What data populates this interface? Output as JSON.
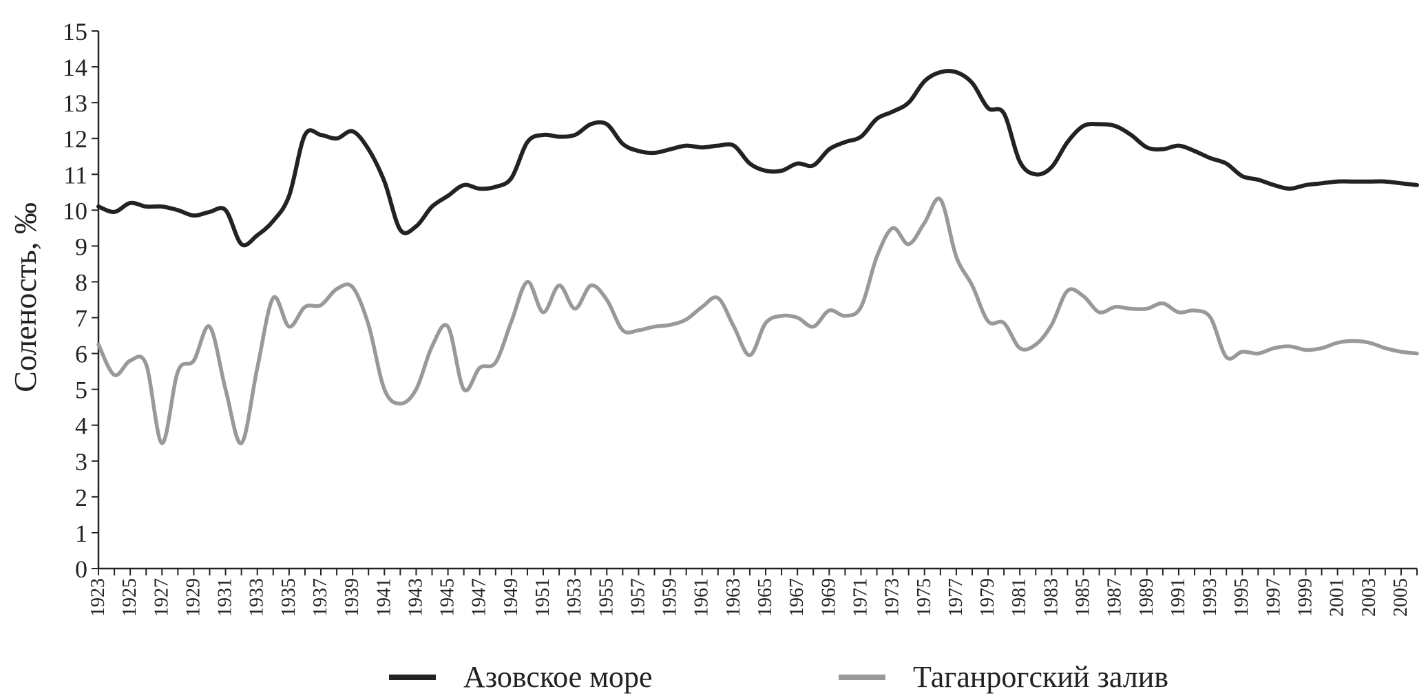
{
  "chart_data": {
    "type": "line",
    "ylabel": "Соленость, ‰",
    "xlabel": "",
    "ylim": [
      0,
      15
    ],
    "yticks": [
      0,
      1,
      2,
      3,
      4,
      5,
      6,
      7,
      8,
      9,
      10,
      11,
      12,
      13,
      14,
      15
    ],
    "xlim": [
      1923,
      2006
    ],
    "xtick_labels": [
      "1923",
      "1925",
      "1927",
      "1929",
      "1931",
      "1933",
      "1935",
      "1937",
      "1939",
      "1941",
      "1943",
      "1945",
      "1947",
      "1949",
      "1951",
      "1953",
      "1955",
      "1957",
      "1959",
      "1961",
      "1963",
      "1965",
      "1967",
      "1969",
      "1971",
      "1973",
      "1975",
      "1977",
      "1979",
      "1981",
      "1983",
      "1985",
      "1987",
      "1989",
      "1991",
      "1993",
      "1995",
      "1997",
      "1999",
      "2001",
      "2003",
      "2005"
    ],
    "grid": false,
    "legend_position": "bottom",
    "series": [
      {
        "name": "Азовское море",
        "color": "#222222",
        "x": [
          1923,
          1924,
          1925,
          1926,
          1927,
          1928,
          1929,
          1930,
          1931,
          1932,
          1933,
          1934,
          1935,
          1936,
          1937,
          1938,
          1939,
          1940,
          1941,
          1942,
          1943,
          1944,
          1945,
          1946,
          1947,
          1948,
          1949,
          1950,
          1951,
          1952,
          1953,
          1954,
          1955,
          1956,
          1957,
          1958,
          1959,
          1960,
          1961,
          1962,
          1963,
          1964,
          1965,
          1966,
          1967,
          1968,
          1969,
          1970,
          1971,
          1972,
          1973,
          1974,
          1975,
          1976,
          1977,
          1978,
          1979,
          1980,
          1981,
          1982,
          1983,
          1984,
          1985,
          1986,
          1987,
          1988,
          1989,
          1990,
          1991,
          1992,
          1993,
          1994,
          1995,
          1996,
          1997,
          1998,
          1999,
          2000,
          2001,
          2002,
          2003,
          2004,
          2005,
          2006
        ],
        "values": [
          10.1,
          9.95,
          10.2,
          10.1,
          10.1,
          10.0,
          9.85,
          9.95,
          10.0,
          9.05,
          9.3,
          9.7,
          10.4,
          12.1,
          12.1,
          12.0,
          12.2,
          11.7,
          10.8,
          9.45,
          9.55,
          10.1,
          10.4,
          10.7,
          10.6,
          10.65,
          10.9,
          11.9,
          12.1,
          12.05,
          12.1,
          12.4,
          12.4,
          11.85,
          11.65,
          11.6,
          11.7,
          11.8,
          11.75,
          11.8,
          11.8,
          11.3,
          11.1,
          11.1,
          11.3,
          11.25,
          11.7,
          11.9,
          12.05,
          12.55,
          12.75,
          13.0,
          13.6,
          13.85,
          13.85,
          13.55,
          12.85,
          12.7,
          11.35,
          11.0,
          11.2,
          11.9,
          12.35,
          12.4,
          12.35,
          12.1,
          11.75,
          11.7,
          11.8,
          11.65,
          11.45,
          11.3,
          10.95,
          10.85,
          10.7,
          10.6,
          10.7,
          10.75,
          10.8,
          10.8,
          10.8,
          10.8,
          10.75,
          10.7
        ]
      },
      {
        "name": "Таганрогский залив",
        "color": "#999999",
        "x": [
          1923,
          1924,
          1925,
          1926,
          1927,
          1928,
          1929,
          1930,
          1931,
          1932,
          1933,
          1934,
          1935,
          1936,
          1937,
          1938,
          1939,
          1940,
          1941,
          1942,
          1943,
          1944,
          1945,
          1946,
          1947,
          1948,
          1949,
          1950,
          1951,
          1952,
          1953,
          1954,
          1955,
          1956,
          1957,
          1958,
          1959,
          1960,
          1961,
          1962,
          1963,
          1964,
          1965,
          1966,
          1967,
          1968,
          1969,
          1970,
          1971,
          1972,
          1973,
          1974,
          1975,
          1976,
          1977,
          1978,
          1979,
          1980,
          1981,
          1982,
          1983,
          1984,
          1985,
          1986,
          1987,
          1988,
          1989,
          1990,
          1991,
          1992,
          1993,
          1994,
          1995,
          1996,
          1997,
          1998,
          1999,
          2000,
          2001,
          2002,
          2003,
          2004,
          2005,
          2006
        ],
        "values": [
          6.25,
          5.4,
          5.8,
          5.7,
          3.5,
          5.5,
          5.8,
          6.75,
          5.0,
          3.5,
          5.6,
          7.55,
          6.75,
          7.3,
          7.35,
          7.8,
          7.85,
          6.8,
          5.0,
          4.6,
          5.0,
          6.2,
          6.75,
          5.0,
          5.6,
          5.75,
          6.9,
          8.0,
          7.15,
          7.9,
          7.25,
          7.9,
          7.5,
          6.65,
          6.65,
          6.75,
          6.8,
          6.95,
          7.3,
          7.55,
          6.75,
          5.95,
          6.85,
          7.05,
          7.0,
          6.75,
          7.2,
          7.05,
          7.3,
          8.7,
          9.5,
          9.05,
          9.65,
          10.3,
          8.7,
          7.9,
          6.9,
          6.85,
          6.15,
          6.25,
          6.8,
          7.75,
          7.6,
          7.15,
          7.3,
          7.25,
          7.25,
          7.4,
          7.15,
          7.2,
          7.0,
          5.9,
          6.05,
          6.0,
          6.15,
          6.2,
          6.1,
          6.15,
          6.3,
          6.35,
          6.3,
          6.15,
          6.05,
          6.0
        ]
      }
    ]
  }
}
